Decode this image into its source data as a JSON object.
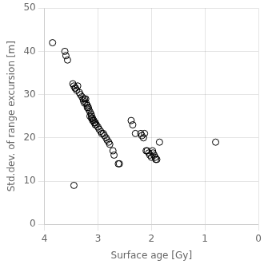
{
  "chart_data": {
    "type": "scatter",
    "x": [
      3.85,
      3.62,
      3.6,
      3.57,
      3.47,
      3.45,
      3.43,
      3.42,
      3.4,
      3.38,
      3.35,
      3.33,
      3.3,
      3.28,
      3.27,
      3.25,
      3.23,
      3.2,
      3.18,
      3.17,
      3.15,
      3.13,
      3.12,
      3.1,
      3.08,
      3.05,
      3.03,
      3.0,
      2.98,
      2.95,
      2.93,
      3.25,
      3.22,
      3.2,
      2.9,
      2.88,
      3.15,
      3.12,
      3.1,
      3.07,
      3.05,
      2.85,
      2.83,
      2.8,
      2.78,
      2.72,
      2.7,
      2.62,
      2.6,
      3.45,
      2.38,
      2.35,
      2.3,
      2.2,
      2.18,
      2.15,
      2.13,
      2.1,
      2.08,
      2.05,
      2.03,
      2.0,
      1.98,
      1.97,
      1.95,
      1.93,
      1.92,
      1.9,
      1.85,
      0.8
    ],
    "values": [
      42,
      40,
      39,
      38,
      32.5,
      32,
      31.5,
      31.5,
      31,
      32,
      30.5,
      30,
      29.5,
      29,
      28.5,
      28,
      29,
      27.5,
      27,
      26.5,
      26,
      25.5,
      25,
      24.5,
      24,
      23.5,
      23,
      22.5,
      22,
      21.5,
      21,
      29,
      28,
      27,
      21,
      20.5,
      25,
      24.5,
      24,
      23.5,
      23,
      20,
      19.5,
      19,
      18.5,
      17,
      16,
      14,
      14,
      9,
      24,
      23,
      21,
      21,
      20.5,
      20,
      21,
      17,
      17,
      16.5,
      16,
      15.5,
      17,
      16.5,
      16,
      15.5,
      15,
      15,
      19,
      19
    ],
    "xlabel": "Surface age [Gy]",
    "ylabel": "Std.dev. of range excursion [m]",
    "xlim": [
      4,
      0
    ],
    "ylim": [
      0,
      50
    ],
    "xticks": [
      4,
      3,
      2,
      1,
      0
    ],
    "yticks": [
      0,
      10,
      20,
      30,
      40,
      50
    ],
    "color": "#000000",
    "marker": "circle",
    "grid": true
  }
}
